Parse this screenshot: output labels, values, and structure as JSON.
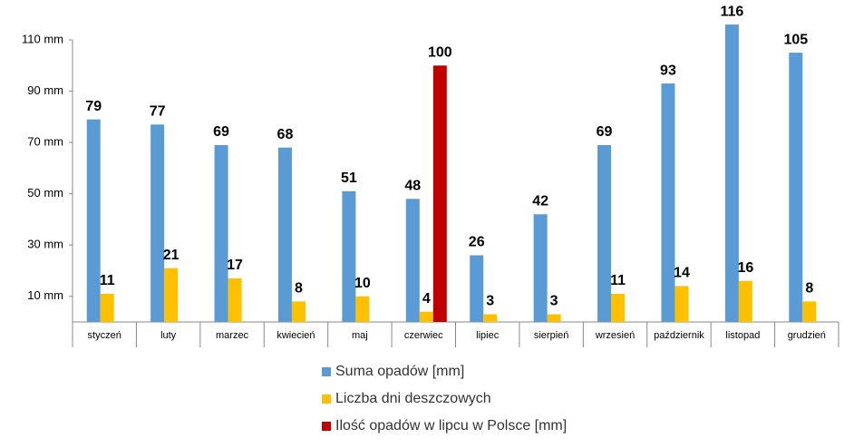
{
  "chart_data": {
    "type": "bar",
    "categories": [
      "styczeń",
      "luty",
      "marzec",
      "kwiecień",
      "maj",
      "czerwiec",
      "lipiec",
      "sierpień",
      "wrzesień",
      "październik",
      "listopad",
      "grudzień"
    ],
    "series": [
      {
        "name": "Suma opadów [mm]",
        "color": "#5b9bd5",
        "values": [
          79,
          77,
          69,
          68,
          51,
          48,
          26,
          42,
          69,
          93,
          116,
          105
        ]
      },
      {
        "name": "Liczba dni deszczowych",
        "color": "#ffc000",
        "values": [
          11,
          21,
          17,
          8,
          10,
          4,
          3,
          3,
          11,
          14,
          16,
          8
        ]
      },
      {
        "name": "Ilość opadów w lipcu w Polsce [mm]",
        "color": "#c00000",
        "values": [
          null,
          null,
          null,
          null,
          null,
          100,
          null,
          null,
          null,
          null,
          null,
          null
        ]
      }
    ],
    "ylim": [
      0,
      110
    ],
    "yticks": [
      {
        "value": 10,
        "label": "10 mm"
      },
      {
        "value": 30,
        "label": "30 mm"
      },
      {
        "value": 50,
        "label": "50 mm"
      },
      {
        "value": 70,
        "label": "70 mm"
      },
      {
        "value": 90,
        "label": "90 mm"
      },
      {
        "value": 110,
        "label": "110 mm"
      }
    ],
    "legend": "bottom"
  }
}
